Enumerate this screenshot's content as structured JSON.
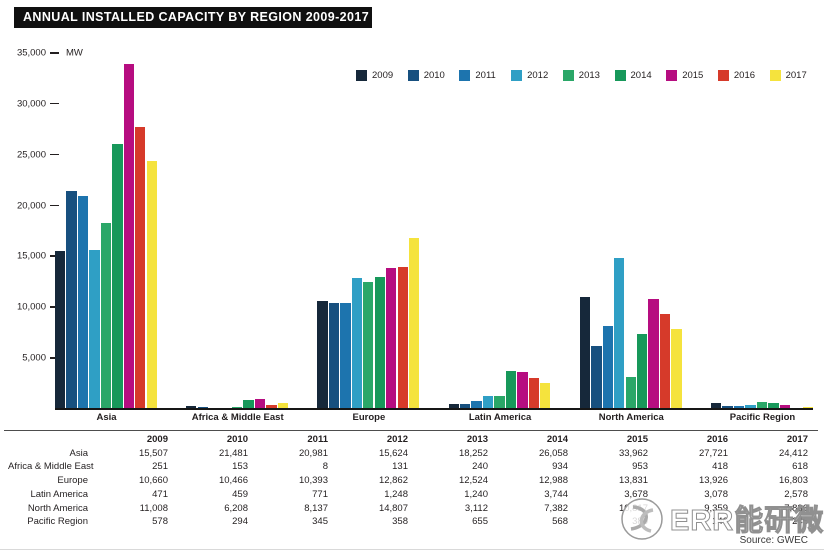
{
  "title": "ANNUAL INSTALLED CAPACITY BY REGION 2009-2017",
  "axis": {
    "unit": "MW",
    "y_tick_labels": [
      "35,000",
      "30,000",
      "25,000",
      "20,000",
      "15,000",
      "10,000",
      "5,000"
    ],
    "y_tick_values": [
      35000,
      30000,
      25000,
      20000,
      15000,
      10000,
      5000
    ]
  },
  "chart_data": {
    "type": "bar",
    "title": "ANNUAL INSTALLED CAPACITY BY REGION 2009-2017",
    "ylabel": "MW",
    "ylim": [
      0,
      35000
    ],
    "grid": false,
    "legend_position": "top-right",
    "categories": [
      "Asia",
      "Africa & Middle East",
      "Europe",
      "Latin America",
      "North America",
      "Pacific Region"
    ],
    "series": [
      {
        "name": "2009",
        "color": "#16283a",
        "values": [
          15507,
          251,
          10660,
          471,
          11008,
          578
        ]
      },
      {
        "name": "2010",
        "color": "#17507f",
        "values": [
          21481,
          153,
          10466,
          459,
          6208,
          294
        ]
      },
      {
        "name": "2011",
        "color": "#1d74ae",
        "values": [
          20981,
          8,
          10393,
          771,
          8137,
          345
        ]
      },
      {
        "name": "2012",
        "color": "#2f9fc5",
        "values": [
          15624,
          131,
          12862,
          1248,
          14807,
          358
        ]
      },
      {
        "name": "2013",
        "color": "#2aa768",
        "values": [
          18252,
          240,
          12524,
          1240,
          3112,
          655
        ]
      },
      {
        "name": "2014",
        "color": "#17985a",
        "values": [
          26058,
          934,
          12988,
          3744,
          7382,
          568
        ]
      },
      {
        "name": "2015",
        "color": "#b60d80",
        "values": [
          33962,
          953,
          13831,
          3678,
          10817,
          380
        ]
      },
      {
        "name": "2016",
        "color": "#d63a2a",
        "values": [
          27721,
          418,
          13926,
          3078,
          9359,
          140
        ]
      },
      {
        "name": "2017",
        "color": "#f5e33d",
        "values": [
          24412,
          618,
          16803,
          2578,
          7836,
          245
        ]
      }
    ]
  },
  "table": {
    "columns": [
      "2009",
      "2010",
      "2011",
      "2012",
      "2013",
      "2014",
      "2015",
      "2016",
      "2017"
    ],
    "rows": [
      {
        "label": "Asia",
        "values": [
          "15,507",
          "21,481",
          "20,981",
          "15,624",
          "18,252",
          "26,058",
          "33,962",
          "27,721",
          "24,412"
        ]
      },
      {
        "label": "Africa & Middle East",
        "values": [
          "251",
          "153",
          "8",
          "131",
          "240",
          "934",
          "953",
          "418",
          "618"
        ]
      },
      {
        "label": "Europe",
        "values": [
          "10,660",
          "10,466",
          "10,393",
          "12,862",
          "12,524",
          "12,988",
          "13,831",
          "13,926",
          "16,803"
        ]
      },
      {
        "label": "Latin America",
        "values": [
          "471",
          "459",
          "771",
          "1,248",
          "1,240",
          "3,744",
          "3,678",
          "3,078",
          "2,578"
        ]
      },
      {
        "label": "North America",
        "values": [
          "11,008",
          "6,208",
          "8,137",
          "14,807",
          "3,112",
          "7,382",
          "10,817",
          "9,359",
          "7,836"
        ]
      },
      {
        "label": "Pacific Region",
        "values": [
          "578",
          "294",
          "345",
          "358",
          "655",
          "568",
          "380",
          "140",
          "245"
        ]
      }
    ]
  },
  "source": "Source: GWEC",
  "watermark": {
    "text": "ERR能研微讯"
  }
}
